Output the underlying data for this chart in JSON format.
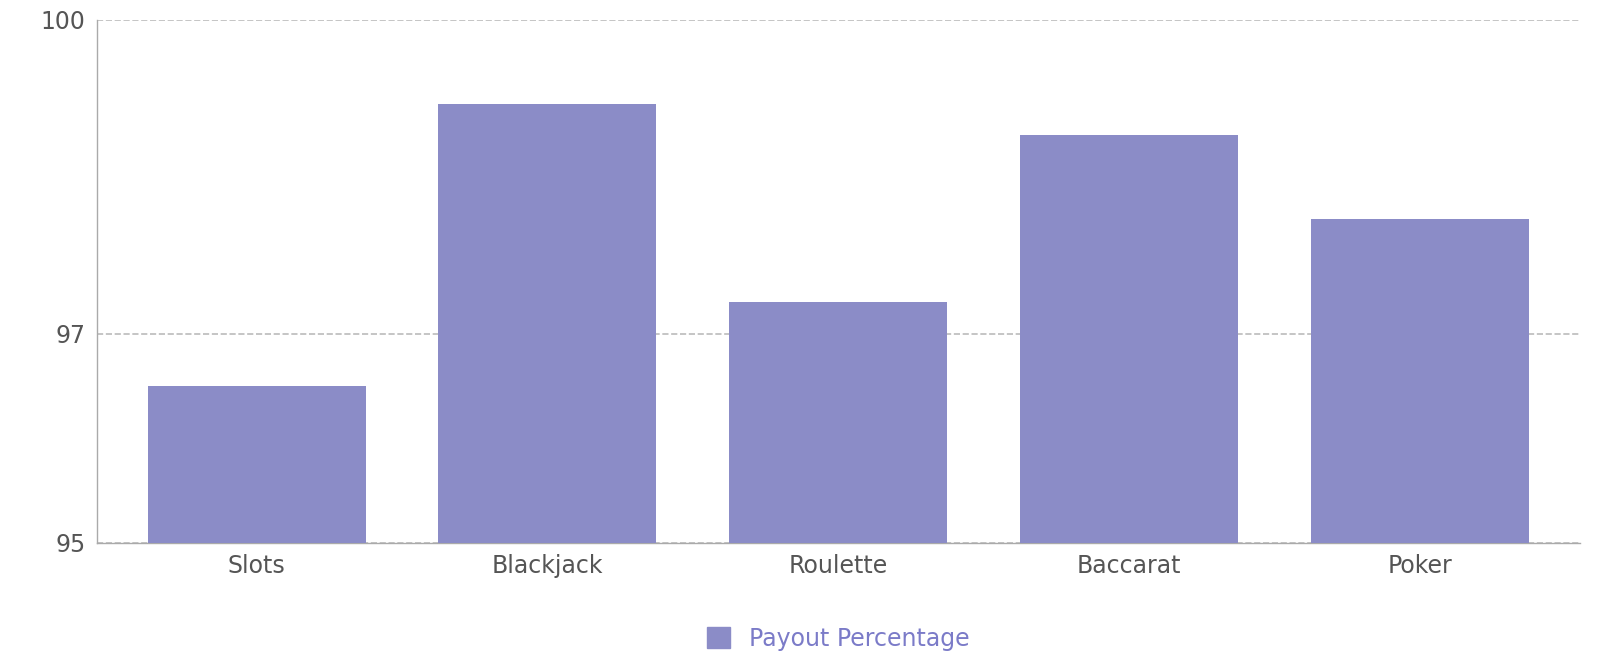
{
  "categories": [
    "Slots",
    "Blackjack",
    "Roulette",
    "Baccarat",
    "Poker"
  ],
  "values": [
    96.5,
    99.2,
    97.3,
    98.9,
    98.1
  ],
  "bar_color": "#8B8CC7",
  "ylim": [
    95,
    100
  ],
  "yticks": [
    95,
    97,
    100
  ],
  "legend_label": "Payout Percentage",
  "legend_color": "#8B8CC7",
  "legend_text_color": "#7b7bc8",
  "background_color": "#ffffff",
  "grid_color": "#bbbbbb",
  "tick_color": "#555555",
  "bar_width": 0.75,
  "figsize": [
    16.12,
    6.62
  ],
  "dpi": 100
}
